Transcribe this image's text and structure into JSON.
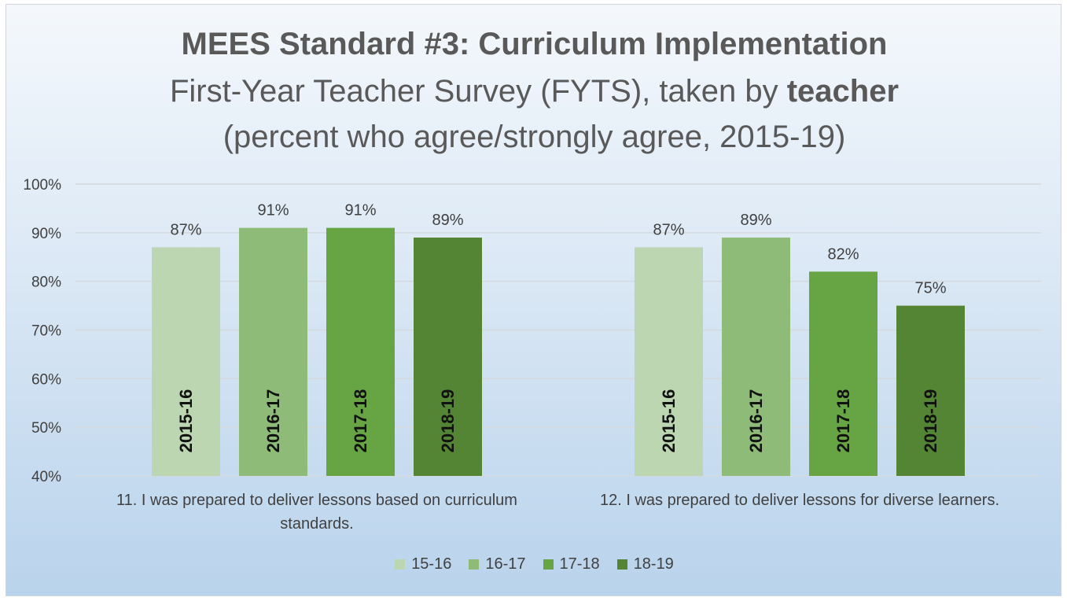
{
  "chart_data": {
    "type": "bar",
    "title": "MEES Standard #3: Curriculum Implementation",
    "subtitle_prefix": "First-Year Teacher Survey (FYTS), taken by ",
    "subtitle_bold": "teacher",
    "subtitle2": "(percent who agree/strongly agree, 2015-19)",
    "categories": [
      "11. I was prepared to deliver lessons based on curriculum standards.",
      "12. I was prepared to deliver lessons for diverse learners."
    ],
    "category_lines": [
      [
        "11. I was prepared to deliver lessons based on curriculum",
        "standards."
      ],
      [
        "12. I was prepared to deliver lessons for diverse learners."
      ]
    ],
    "series": [
      {
        "name": "15-16",
        "bar_label": "2015-16",
        "values": [
          87,
          87
        ],
        "color": "#bcd6b1"
      },
      {
        "name": "16-17",
        "bar_label": "2016-17",
        "values": [
          91,
          89
        ],
        "color": "#8fbb79"
      },
      {
        "name": "17-18",
        "bar_label": "2017-18",
        "values": [
          91,
          82
        ],
        "color": "#67a443"
      },
      {
        "name": "18-19",
        "bar_label": "2018-19",
        "values": [
          89,
          75
        ],
        "color": "#538535"
      }
    ],
    "data_labels": [
      [
        "87%",
        "87%"
      ],
      [
        "91%",
        "89%"
      ],
      [
        "91%",
        "82%"
      ],
      [
        "89%",
        "75%"
      ]
    ],
    "yticks": [
      "40%",
      "50%",
      "60%",
      "70%",
      "80%",
      "90%",
      "100%"
    ],
    "ylim": [
      40,
      100
    ],
    "grid": true,
    "legend_position": "bottom"
  }
}
